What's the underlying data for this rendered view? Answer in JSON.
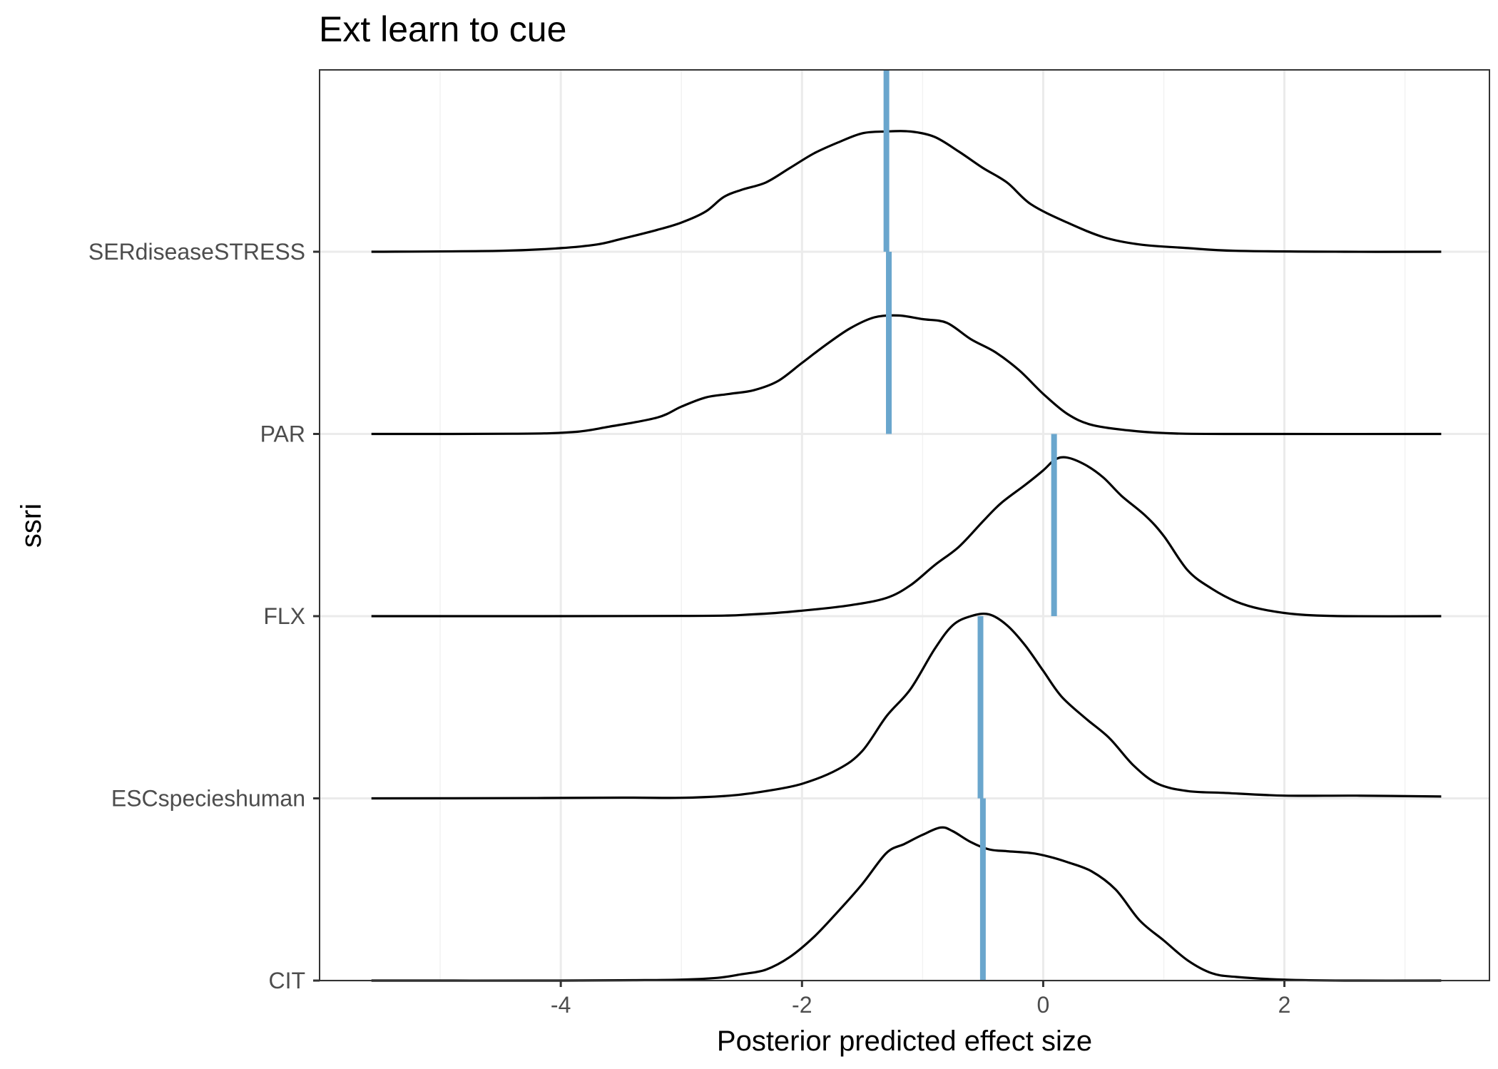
{
  "chart_data": {
    "type": "ridgeline",
    "title": "Ext learn to cue",
    "xlabel": "Posterior predicted effect size",
    "ylabel": "ssri",
    "xlim": [
      -6.0,
      3.7
    ],
    "x_ticks": [
      -4,
      -2,
      0,
      2
    ],
    "x_tick_labels": [
      "-4",
      "-2",
      "0",
      "2"
    ],
    "grid": true,
    "median_color": "#6aa6cd",
    "categories": [
      "CIT",
      "ESCspecieshuman",
      "FLX",
      "PAR",
      "SERdiseaseSTRESS"
    ],
    "series": [
      {
        "name": "CIT",
        "median": -0.5,
        "density": [
          [
            -5.57,
            0
          ],
          [
            -4,
            0
          ],
          [
            -3.4,
            0.002
          ],
          [
            -3,
            0.005
          ],
          [
            -2.7,
            0.015
          ],
          [
            -2.5,
            0.035
          ],
          [
            -2.3,
            0.06
          ],
          [
            -2.1,
            0.13
          ],
          [
            -1.9,
            0.24
          ],
          [
            -1.7,
            0.38
          ],
          [
            -1.5,
            0.53
          ],
          [
            -1.3,
            0.7
          ],
          [
            -1.15,
            0.75
          ],
          [
            -1.0,
            0.8
          ],
          [
            -0.85,
            0.84
          ],
          [
            -0.75,
            0.82
          ],
          [
            -0.6,
            0.76
          ],
          [
            -0.45,
            0.72
          ],
          [
            -0.3,
            0.71
          ],
          [
            -0.1,
            0.7
          ],
          [
            0.05,
            0.68
          ],
          [
            0.2,
            0.65
          ],
          [
            0.4,
            0.6
          ],
          [
            0.6,
            0.5
          ],
          [
            0.8,
            0.33
          ],
          [
            1.0,
            0.22
          ],
          [
            1.2,
            0.11
          ],
          [
            1.4,
            0.04
          ],
          [
            1.6,
            0.02
          ],
          [
            2.0,
            0.005
          ],
          [
            2.5,
            0
          ],
          [
            3.3,
            0
          ]
        ]
      },
      {
        "name": "ESCspecieshuman",
        "median": -0.52,
        "density": [
          [
            -5.57,
            0
          ],
          [
            -4.5,
            0.001
          ],
          [
            -3.5,
            0.004
          ],
          [
            -3,
            0.003
          ],
          [
            -2.6,
            0.015
          ],
          [
            -2.3,
            0.04
          ],
          [
            -2.0,
            0.08
          ],
          [
            -1.7,
            0.16
          ],
          [
            -1.5,
            0.26
          ],
          [
            -1.3,
            0.45
          ],
          [
            -1.1,
            0.6
          ],
          [
            -0.9,
            0.82
          ],
          [
            -0.75,
            0.95
          ],
          [
            -0.6,
            1.0
          ],
          [
            -0.45,
            1.01
          ],
          [
            -0.3,
            0.95
          ],
          [
            -0.15,
            0.84
          ],
          [
            0.0,
            0.7
          ],
          [
            0.15,
            0.56
          ],
          [
            0.35,
            0.44
          ],
          [
            0.55,
            0.33
          ],
          [
            0.75,
            0.18
          ],
          [
            0.95,
            0.08
          ],
          [
            1.2,
            0.04
          ],
          [
            1.5,
            0.03
          ],
          [
            2.0,
            0.015
          ],
          [
            2.6,
            0.015
          ],
          [
            3.3,
            0.01
          ]
        ]
      },
      {
        "name": "FLX",
        "median": 0.09,
        "density": [
          [
            -5.57,
            0
          ],
          [
            -3,
            0.001
          ],
          [
            -2.4,
            0.01
          ],
          [
            -2.0,
            0.03
          ],
          [
            -1.6,
            0.06
          ],
          [
            -1.3,
            0.1
          ],
          [
            -1.1,
            0.17
          ],
          [
            -0.9,
            0.28
          ],
          [
            -0.7,
            0.38
          ],
          [
            -0.5,
            0.52
          ],
          [
            -0.35,
            0.62
          ],
          [
            -0.15,
            0.72
          ],
          [
            0.0,
            0.8
          ],
          [
            0.1,
            0.86
          ],
          [
            0.2,
            0.87
          ],
          [
            0.35,
            0.83
          ],
          [
            0.5,
            0.76
          ],
          [
            0.65,
            0.66
          ],
          [
            0.85,
            0.55
          ],
          [
            1.0,
            0.44
          ],
          [
            1.2,
            0.25
          ],
          [
            1.4,
            0.15
          ],
          [
            1.6,
            0.08
          ],
          [
            1.8,
            0.04
          ],
          [
            2.1,
            0.01
          ],
          [
            2.5,
            0
          ],
          [
            3.3,
            0
          ]
        ]
      },
      {
        "name": "PAR",
        "median": -1.28,
        "density": [
          [
            -5.57,
            0
          ],
          [
            -4.4,
            0.001
          ],
          [
            -3.9,
            0.01
          ],
          [
            -3.6,
            0.04
          ],
          [
            -3.2,
            0.09
          ],
          [
            -3.0,
            0.15
          ],
          [
            -2.8,
            0.2
          ],
          [
            -2.6,
            0.22
          ],
          [
            -2.4,
            0.24
          ],
          [
            -2.2,
            0.29
          ],
          [
            -2.0,
            0.39
          ],
          [
            -1.8,
            0.49
          ],
          [
            -1.6,
            0.58
          ],
          [
            -1.4,
            0.64
          ],
          [
            -1.2,
            0.65
          ],
          [
            -1.0,
            0.63
          ],
          [
            -0.8,
            0.61
          ],
          [
            -0.6,
            0.52
          ],
          [
            -0.4,
            0.45
          ],
          [
            -0.2,
            0.35
          ],
          [
            0.0,
            0.22
          ],
          [
            0.2,
            0.11
          ],
          [
            0.4,
            0.05
          ],
          [
            0.7,
            0.02
          ],
          [
            1.0,
            0.005
          ],
          [
            1.5,
            0
          ],
          [
            3.3,
            0
          ]
        ]
      },
      {
        "name": "SERdiseaseSTRESS",
        "median": -1.3,
        "density": [
          [
            -5.57,
            0
          ],
          [
            -4.5,
            0.005
          ],
          [
            -4.0,
            0.02
          ],
          [
            -3.7,
            0.04
          ],
          [
            -3.5,
            0.07
          ],
          [
            -3.2,
            0.12
          ],
          [
            -3.0,
            0.16
          ],
          [
            -2.8,
            0.22
          ],
          [
            -2.65,
            0.3
          ],
          [
            -2.5,
            0.34
          ],
          [
            -2.3,
            0.38
          ],
          [
            -2.1,
            0.46
          ],
          [
            -1.9,
            0.54
          ],
          [
            -1.7,
            0.6
          ],
          [
            -1.5,
            0.65
          ],
          [
            -1.3,
            0.66
          ],
          [
            -1.1,
            0.66
          ],
          [
            -0.9,
            0.63
          ],
          [
            -0.7,
            0.55
          ],
          [
            -0.5,
            0.46
          ],
          [
            -0.3,
            0.38
          ],
          [
            -0.1,
            0.26
          ],
          [
            0.2,
            0.16
          ],
          [
            0.5,
            0.08
          ],
          [
            0.8,
            0.04
          ],
          [
            1.2,
            0.02
          ],
          [
            1.6,
            0.005
          ],
          [
            2.5,
            0
          ],
          [
            3.3,
            0
          ]
        ]
      }
    ]
  }
}
